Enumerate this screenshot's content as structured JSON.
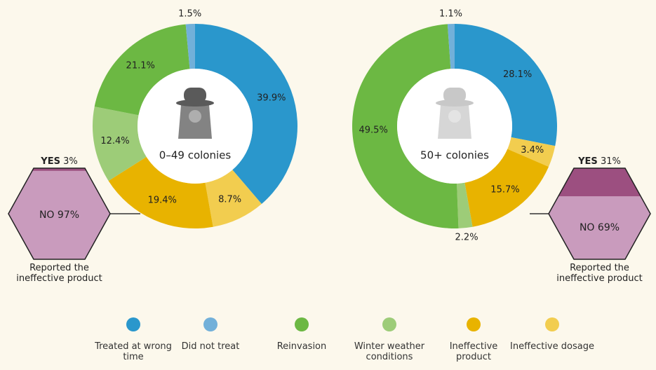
{
  "chart_data": [
    {
      "type": "donut",
      "center_label": "0–49 colonies",
      "categories": [
        "Treated at wrong time",
        "Did not treat",
        "Reinvasion",
        "Winter weather conditions",
        "Ineffective product",
        "Ineffective dosage"
      ],
      "colors": [
        "#2a97cc",
        "#72b0d9",
        "#6cb843",
        "#9dcc78",
        "#e8b300",
        "#f2cd4f"
      ],
      "values": [
        39.9,
        1.5,
        21.1,
        12.4,
        19.4,
        8.7
      ],
      "value_labels": [
        "39.9%",
        "1.5%",
        "21.1%",
        "12.4%",
        "19.4%",
        "8.7%"
      ],
      "hexagon": {
        "yes_label": "YES",
        "yes": 3,
        "yes_value_label": "3%",
        "no_label": "NO",
        "no": 97,
        "no_value_label": "97%",
        "caption": "Reported the ineffective product"
      }
    },
    {
      "type": "donut",
      "center_label": "50+ colonies",
      "categories": [
        "Treated at wrong time",
        "Did not treat",
        "Reinvasion",
        "Winter weather conditions",
        "Ineffective product",
        "Ineffective dosage"
      ],
      "colors": [
        "#2a97cc",
        "#72b0d9",
        "#6cb843",
        "#9dcc78",
        "#e8b300",
        "#f2cd4f"
      ],
      "values": [
        28.1,
        1.1,
        49.5,
        2.2,
        15.7,
        3.4
      ],
      "value_labels": [
        "28.1%",
        "1.1%",
        "49.5%",
        "2.2%",
        "15.7%",
        "3.4%"
      ],
      "hexagon": {
        "yes_label": "YES",
        "yes": 31,
        "yes_value_label": "31%",
        "no_label": "NO",
        "no": 69,
        "no_value_label": "69%",
        "caption": "Reported the ineffective product"
      }
    }
  ]
}
